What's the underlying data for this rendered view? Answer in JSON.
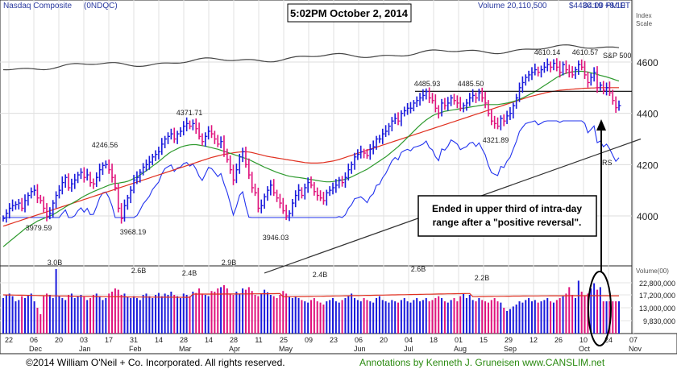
{
  "header": {
    "index_name": "Nasdaq Composite",
    "symbol": "(0NDQC)",
    "timestamp": "5:02PM October 2, 2014",
    "volume": "Volume 20,110,500",
    "price": "$4430.19 +8.10",
    "time": "04:00 PM ET"
  },
  "scale_label": [
    "Index",
    "Scale"
  ],
  "volume_axis_label": "Volume(00)",
  "footer": {
    "copyright": "©2014 William O'Neil + Co. Incorporated. All rights reserved.",
    "annotations": "Annotations by Kenneth J. Gruneisen  www.CANSLIM.net"
  },
  "annotation_box": [
    "Ended in upper third of intra-day",
    "range after a \"positive reversal\"."
  ],
  "colors": {
    "up_bar": "#1a1adc",
    "down_bar": "#e0127c",
    "sma50": "#2e9a2e",
    "sma200_red": "#e03020",
    "rs_line": "#2233ee",
    "sp500": "#444444",
    "trend": "#333333",
    "vol_avg": "#e03020",
    "footer_green": "#2a8a10"
  },
  "chart_data": {
    "type": "ohlc",
    "title": "Nasdaq Composite (0NDQC)",
    "y_axis": {
      "ticks": [
        4000,
        4200,
        4400,
        4600
      ],
      "range": [
        3850,
        4700
      ],
      "scale": "log-like"
    },
    "volume_axis": {
      "ticks": [
        "22,800,000",
        "17,200,000",
        "13,000,000",
        "9,830,000"
      ]
    },
    "x_tick_labels": [
      "22",
      "06",
      "20",
      "03",
      "17",
      "31",
      "14",
      "28",
      "14",
      "28",
      "11",
      "25",
      "09",
      "23",
      "06",
      "20",
      "04",
      "18",
      "01",
      "15",
      "29",
      "12",
      "26",
      "10",
      "24",
      "07"
    ],
    "month_labels": [
      "Dec",
      "Jan",
      "Feb",
      "Mar",
      "Apr",
      "May",
      "Jun",
      "Jul",
      "Aug",
      "Sep",
      "Oct",
      "Nov"
    ],
    "price_labels": [
      {
        "text": "3979.59",
        "value": 3979.59
      },
      {
        "text": "4246.56",
        "value": 4246.56
      },
      {
        "text": "3968.19",
        "value": 3968.19
      },
      {
        "text": "4371.71",
        "value": 4371.71
      },
      {
        "text": "3946.03",
        "value": 3946.03
      },
      {
        "text": "4485.93",
        "value": 4485.93
      },
      {
        "text": "4485.50",
        "value": 4485.5
      },
      {
        "text": "4321.89",
        "value": 4321.89
      },
      {
        "text": "4610.14",
        "value": 4610.14
      },
      {
        "text": "4610.57",
        "value": 4610.57
      }
    ],
    "volume_labels": [
      "3.0B",
      "2.6B",
      "2.4B",
      "2.9B",
      "2.4B",
      "2.6B",
      "2.2B"
    ],
    "series_labels": [
      "S&P 500",
      "RS"
    ],
    "resistance_level": 4485.93,
    "close": [
      3990,
      4010,
      4030,
      4040,
      4045,
      4050,
      4030,
      4060,
      4080,
      4095,
      4100,
      4070,
      4060,
      4030,
      3999,
      4010,
      4050,
      4080,
      4100,
      4130,
      4150,
      4110,
      4125,
      4140,
      4160,
      4170,
      4150,
      4160,
      4130,
      4125,
      4150,
      4180,
      4197,
      4200,
      4180,
      4150,
      4110,
      4030,
      3990,
      4040,
      4070,
      4100,
      4140,
      4150,
      4170,
      4190,
      4200,
      4210,
      4230,
      4240,
      4250,
      4280,
      4300,
      4310,
      4320,
      4300,
      4320,
      4330,
      4350,
      4360,
      4350,
      4360,
      4340,
      4310,
      4290,
      4310,
      4330,
      4320,
      4300,
      4280,
      4290,
      4250,
      4220,
      4180,
      4140,
      4180,
      4230,
      4250,
      4200,
      4160,
      4110,
      4090,
      4030,
      4040,
      4075,
      4100,
      4120,
      4090,
      4070,
      4050,
      4020,
      4000,
      4010,
      4050,
      4080,
      4100,
      4080,
      4110,
      4130,
      4120,
      4095,
      4080,
      4070,
      4060,
      4090,
      4100,
      4110,
      4120,
      4140,
      4130,
      4150,
      4180,
      4200,
      4230,
      4240,
      4250,
      4245,
      4235,
      4260,
      4270,
      4300,
      4300,
      4320,
      4330,
      4350,
      4370,
      4380,
      4370,
      4400,
      4410,
      4420,
      4420,
      4440,
      4450,
      4460,
      4470,
      4485,
      4460,
      4450,
      4420,
      4400,
      4440,
      4430,
      4440,
      4460,
      4450,
      4440,
      4420,
      4430,
      4440,
      4460,
      4470,
      4460,
      4480,
      4460,
      4440,
      4400,
      4370,
      4360,
      4350,
      4380,
      4370,
      4390,
      4400,
      4430,
      4460,
      4500,
      4520,
      4540,
      4550,
      4560,
      4570,
      4560,
      4570,
      4580,
      4590,
      4580,
      4595,
      4580,
      4560,
      4590,
      4570,
      4560,
      4550,
      4570,
      4590,
      4580,
      4550,
      4520,
      4540,
      4560,
      4500,
      4510,
      4490,
      4500,
      4480,
      4450,
      4422,
      4430
    ],
    "volume_pct": [
      0.55,
      0.6,
      0.62,
      0.58,
      0.5,
      0.52,
      0.58,
      0.55,
      0.6,
      0.62,
      0.5,
      0.4,
      0.3,
      0.58,
      0.62,
      0.6,
      0.55,
      1.0,
      0.58,
      0.55,
      0.52,
      0.6,
      0.62,
      0.55,
      0.58,
      0.6,
      0.57,
      0.52,
      0.55,
      0.6,
      0.62,
      0.58,
      0.52,
      0.55,
      0.62,
      0.65,
      0.7,
      0.68,
      0.6,
      0.62,
      0.57,
      0.55,
      0.58,
      0.55,
      0.52,
      0.6,
      0.62,
      0.58,
      0.55,
      0.6,
      0.63,
      0.58,
      0.62,
      0.6,
      0.65,
      0.6,
      0.58,
      0.55,
      0.62,
      0.6,
      0.58,
      0.65,
      0.63,
      0.7,
      0.62,
      0.6,
      0.58,
      0.66,
      0.65,
      0.7,
      0.72,
      0.75,
      0.7,
      0.62,
      0.6,
      0.65,
      0.62,
      0.7,
      0.68,
      0.72,
      0.66,
      0.6,
      0.58,
      0.62,
      0.68,
      0.64,
      0.6,
      0.58,
      0.55,
      0.6,
      0.66,
      0.62,
      0.57,
      0.55,
      0.58,
      0.55,
      0.52,
      0.5,
      0.48,
      0.52,
      0.55,
      0.5,
      0.48,
      0.45,
      0.5,
      0.52,
      0.55,
      0.5,
      0.48,
      0.52,
      0.55,
      0.58,
      0.62,
      0.55,
      0.52,
      0.5,
      0.55,
      0.52,
      0.5,
      0.48,
      0.55,
      0.58,
      0.52,
      0.5,
      0.48,
      0.52,
      0.5,
      0.48,
      0.52,
      0.55,
      0.5,
      0.48,
      0.52,
      0.55,
      0.5,
      0.52,
      0.55,
      0.5,
      0.52,
      0.55,
      0.58,
      0.55,
      0.5,
      0.48,
      0.52,
      0.55,
      0.5,
      0.58,
      0.62,
      0.55,
      0.6,
      0.52,
      0.5,
      0.55,
      0.52,
      0.5,
      0.48,
      0.52,
      0.55,
      0.5,
      0.48,
      0.4,
      0.35,
      0.38,
      0.42,
      0.45,
      0.5,
      0.48,
      0.52,
      0.55,
      0.5,
      0.52,
      0.48,
      0.5,
      0.52,
      0.55,
      0.5,
      0.48,
      0.52,
      0.55,
      0.58,
      0.62,
      0.72,
      0.6,
      0.55,
      0.82,
      0.65,
      0.58,
      0.62,
      0.7,
      0.78,
      0.68,
      0.72
    ],
    "sma50": [
      3880,
      3890,
      3900,
      3910,
      3920,
      3930,
      3940,
      3950,
      3958,
      3965,
      3972,
      3980,
      3985,
      3990,
      3995,
      4000,
      4005,
      4012,
      4020,
      4027,
      4035,
      4042,
      4048,
      4055,
      4062,
      4070,
      4077,
      4083,
      4089,
      4095,
      4100,
      4105,
      4110,
      4115,
      4120,
      4124,
      4127,
      4128,
      4130,
      4132,
      4135,
      4140,
      4146,
      4152,
      4160,
      4168,
      4176,
      4185,
      4194,
      4203,
      4212,
      4222,
      4232,
      4242,
      4250,
      4256,
      4262,
      4268,
      4272,
      4275,
      4277,
      4278,
      4278,
      4276,
      4274,
      4272,
      4269,
      4266,
      4263,
      4260,
      4256,
      4252,
      4248,
      4244,
      4240,
      4236,
      4232,
      4228,
      4224,
      4220,
      4214,
      4208,
      4202,
      4196,
      4190,
      4185,
      4180,
      4175,
      4170,
      4166,
      4162,
      4158,
      4155,
      4153,
      4151,
      4150,
      4148,
      4146,
      4144,
      4142,
      4140,
      4138,
      4136,
      4134,
      4133,
      4133,
      4134,
      4136,
      4138,
      4140,
      4143,
      4147,
      4152,
      4158,
      4164,
      4170,
      4176,
      4182,
      4190,
      4198,
      4206,
      4214,
      4222,
      4230,
      4240,
      4250,
      4260,
      4270,
      4282,
      4294,
      4306,
      4318,
      4330,
      4342,
      4354,
      4364,
      4374,
      4382,
      4390,
      4396,
      4400,
      4404,
      4408,
      4410,
      4412,
      4414,
      4416,
      4418,
      4420,
      4422,
      4424,
      4426,
      4428,
      4430,
      4432,
      4434,
      4434,
      4434,
      4434,
      4434,
      4436,
      4438,
      4440,
      4443,
      4446,
      4450,
      4455,
      4460,
      4466,
      4472,
      4478,
      4485,
      4492,
      4500,
      4508,
      4516,
      4524,
      4532,
      4540,
      4546,
      4552,
      4556,
      4560,
      4562,
      4563,
      4564,
      4564,
      4563,
      4561,
      4558,
      4555,
      4552,
      4548,
      4545,
      4542,
      4538,
      4534,
      4530,
      4526
    ],
    "sma200": [
      3960,
      3964,
      3968,
      3972,
      3976,
      3980,
      3984,
      3988,
      3992,
      3996,
      4000,
      4004,
      4008,
      4012,
      4016,
      4020,
      4024,
      4028,
      4032,
      4036,
      4040,
      4044,
      4048,
      4052,
      4056,
      4060,
      4064,
      4068,
      4072,
      4076,
      4080,
      4084,
      4088,
      4092,
      4096,
      4100,
      4104,
      4108,
      4112,
      4116,
      4120,
      4124,
      4128,
      4132,
      4136,
      4140,
      4144,
      4148,
      4152,
      4156,
      4160,
      4164,
      4168,
      4172,
      4176,
      4180,
      4184,
      4188,
      4192,
      4196,
      4200,
      4204,
      4208,
      4212,
      4216,
      4220,
      4224,
      4228,
      4231,
      4234,
      4237,
      4240,
      4242,
      4244,
      4246,
      4248,
      4249,
      4250,
      4250,
      4249,
      4247,
      4244,
      4241,
      4238,
      4235,
      4232,
      4230,
      4228,
      4226,
      4224,
      4222,
      4220,
      4218,
      4216,
      4214,
      4212,
      4210,
      4208,
      4207,
      4206,
      4206,
      4206,
      4207,
      4208,
      4210,
      4212,
      4214,
      4217,
      4220,
      4224,
      4228,
      4232,
      4236,
      4240,
      4244,
      4248,
      4252,
      4256,
      4260,
      4264,
      4268,
      4272,
      4276,
      4280,
      4284,
      4288,
      4292,
      4296,
      4300,
      4304,
      4308,
      4312,
      4316,
      4320,
      4324,
      4328,
      4332,
      4336,
      4340,
      4344,
      4348,
      4352,
      4356,
      4360,
      4364,
      4368,
      4372,
      4376,
      4380,
      4384,
      4388,
      4392,
      4396,
      4400,
      4404,
      4408,
      4412,
      4416,
      4420,
      4424,
      4428,
      4432,
      4436,
      4440,
      4444,
      4448,
      4452,
      4456,
      4460,
      4464,
      4467,
      4470,
      4473,
      4476,
      4479,
      4482,
      4484,
      4486,
      4488,
      4490,
      4491,
      4492,
      4493,
      4494,
      4495,
      4496,
      4497,
      4498,
      4498,
      4499,
      4499,
      4500,
      4500,
      4500,
      4500,
      4500,
      4500,
      4500,
      4500
    ],
    "trend_line": {
      "from": {
        "bar": 84,
        "value": 3950
      },
      "to": {
        "bar": 205,
        "value": 4300
      }
    },
    "sp500_line_note": "S&P 500 relative line plotted near top of price pane"
  }
}
